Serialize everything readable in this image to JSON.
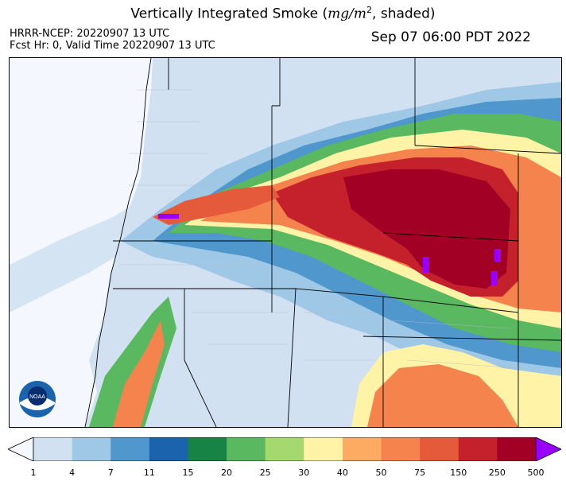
{
  "header": {
    "title_prefix": "Vertically Integrated Smoke (",
    "title_unit": "mg/m",
    "title_exp": "2",
    "title_suffix": ", shaded)",
    "model_line": "HRRR-NCEP: 20220907 13 UTC",
    "forecast_line": "Fcst Hr: 0, Valid Time 20220907 13 UTC",
    "valid_local": "Sep 07 06:00 PDT 2022"
  },
  "logo": {
    "text": "NOAA",
    "icon": "noaa-logo"
  },
  "colorbar": {
    "ticks": [
      "1",
      "4",
      "7",
      "11",
      "15",
      "20",
      "25",
      "30",
      "40",
      "50",
      "75",
      "150",
      "250",
      "500"
    ],
    "colors": [
      "#f5f8ff",
      "#d2e1f2",
      "#9ec8e6",
      "#4f97cc",
      "#1b64ad",
      "#178446",
      "#5ab960",
      "#a5d86e",
      "#fff3a8",
      "#fdaa62",
      "#f5834d",
      "#e65a3c",
      "#c4212c",
      "#a30025",
      "#9900ff"
    ]
  },
  "map": {
    "background_color": "#f4f8fe",
    "ocean_color": "#f4f8fe"
  }
}
